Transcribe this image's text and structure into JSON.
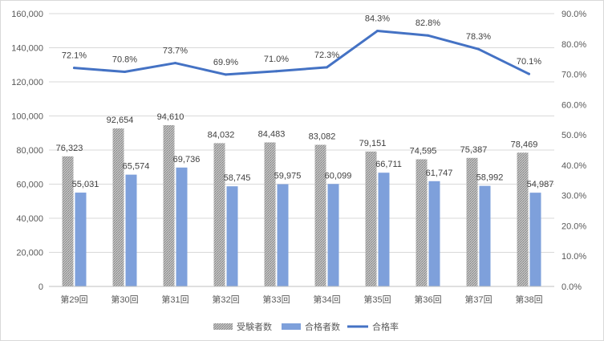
{
  "chart_data": {
    "type": "bar",
    "categories": [
      "第29回",
      "第30回",
      "第31回",
      "第32回",
      "第33回",
      "第34回",
      "第35回",
      "第36回",
      "第37回",
      "第38回"
    ],
    "series": [
      {
        "name": "受験者数",
        "type": "bar",
        "axis": "left",
        "color": "#a6a6a6",
        "values": [
          76323,
          92654,
          94610,
          84032,
          84483,
          83082,
          79151,
          74595,
          75387,
          78469
        ],
        "labels": [
          "76,323",
          "92,654",
          "94,610",
          "84,032",
          "84,483",
          "83,082",
          "79,151",
          "74,595",
          "75,387",
          "78,469"
        ]
      },
      {
        "name": "合格者数",
        "type": "bar",
        "axis": "left",
        "color": "#7ea0db",
        "values": [
          55031,
          65574,
          69736,
          58745,
          59975,
          60099,
          66711,
          61747,
          58992,
          54987
        ],
        "labels": [
          "55,031",
          "65,574",
          "69,736",
          "58,745",
          "59,975",
          "60,099",
          "66,711",
          "61,747",
          "58,992",
          "54,987"
        ]
      },
      {
        "name": "合格率",
        "type": "line",
        "axis": "right",
        "color": "#4472c4",
        "values": [
          72.1,
          70.8,
          73.7,
          69.9,
          71.0,
          72.3,
          84.3,
          82.8,
          78.3,
          70.1
        ],
        "labels": [
          "72.1%",
          "70.8%",
          "73.7%",
          "69.9%",
          "71.0%",
          "72.3%",
          "84.3%",
          "82.8%",
          "78.3%",
          "70.1%"
        ]
      }
    ],
    "y_left": {
      "ylim": [
        0,
        160000
      ],
      "ticks": [
        0,
        20000,
        40000,
        60000,
        80000,
        100000,
        120000,
        140000,
        160000
      ],
      "tick_labels": [
        "0",
        "20,000",
        "40,000",
        "60,000",
        "80,000",
        "100,000",
        "120,000",
        "140,000",
        "160,000"
      ]
    },
    "y_right": {
      "ylim": [
        0,
        90
      ],
      "ticks": [
        0,
        10,
        20,
        30,
        40,
        50,
        60,
        70,
        80,
        90
      ],
      "tick_labels": [
        "0.0%",
        "10.0%",
        "20.0%",
        "30.0%",
        "40.0%",
        "50.0%",
        "60.0%",
        "70.0%",
        "80.0%",
        "90.0%"
      ]
    },
    "grid": true,
    "legend": {
      "position": "bottom",
      "items": [
        "受験者数",
        "合格者数",
        "合格率"
      ]
    }
  }
}
